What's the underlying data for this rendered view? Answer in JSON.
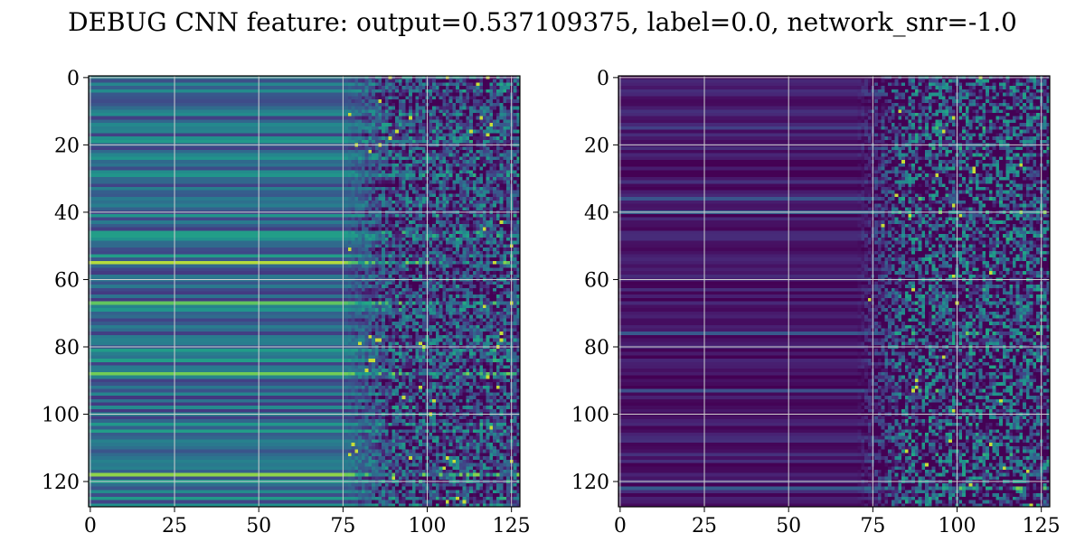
{
  "figure": {
    "title": "DEBUG CNN feature: output=0.537109375, label=0.0, network_snr=-1.0"
  },
  "chart_data": [
    {
      "type": "heatmap",
      "colormap": "viridis",
      "rows": 128,
      "cols": 128,
      "xlim": [
        0,
        127
      ],
      "ylim": [
        127,
        0
      ],
      "y_axis_inverted": true,
      "grid": true,
      "xticks": [
        0,
        25,
        50,
        75,
        100,
        125
      ],
      "yticks": [
        0,
        20,
        40,
        60,
        80,
        100,
        120
      ],
      "value_profile": {
        "smooth_region_cols": [
          0,
          75
        ],
        "noisy_region_cols": [
          75,
          127
        ],
        "base_level": 0.45,
        "row_stripe_amplitude": 0.25,
        "noise_amplitude": 0.4,
        "bright_rows": [
          55,
          67,
          88,
          100,
          118
        ]
      },
      "xlabel": "",
      "ylabel": ""
    },
    {
      "type": "heatmap",
      "colormap": "viridis",
      "rows": 128,
      "cols": 128,
      "xlim": [
        0,
        127
      ],
      "ylim": [
        127,
        0
      ],
      "y_axis_inverted": true,
      "grid": true,
      "xticks": [
        0,
        25,
        50,
        75,
        100,
        125
      ],
      "yticks": [
        0,
        20,
        40,
        60,
        80,
        100,
        120
      ],
      "value_profile": {
        "smooth_region_cols": [
          0,
          70
        ],
        "noisy_region_cols": [
          70,
          127
        ],
        "base_level": 0.08,
        "row_stripe_amplitude": 0.1,
        "noise_amplitude": 0.55,
        "bright_rows": [
          15,
          36,
          40,
          76,
          93,
          122
        ]
      },
      "xlabel": "",
      "ylabel": ""
    }
  ]
}
